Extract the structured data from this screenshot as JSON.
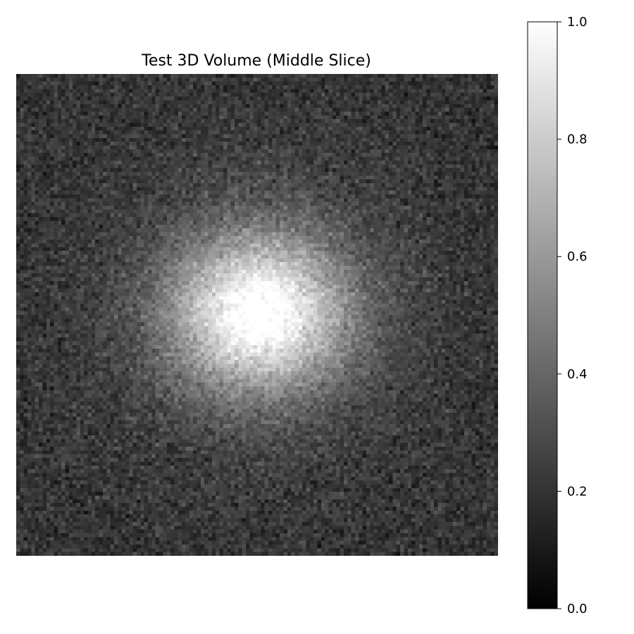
{
  "chart_data": {
    "type": "heatmap",
    "title": "Test 3D Volume (Middle Slice)",
    "colormap": "gray",
    "axes_visible": false,
    "grid": false,
    "image": {
      "rows": 128,
      "cols": 128,
      "background_level": 0.2,
      "noise_amplitude": 0.09,
      "blob_peak": 0.95,
      "blob_center_row": 63,
      "blob_center_col": 64,
      "blob_sigma_rows": 14,
      "blob_sigma_cols": 16,
      "halo_peak": 0.12,
      "halo_sigma": 30
    },
    "colorbar": {
      "vmin": 0.0,
      "vmax": 1.0,
      "ticks": [
        "0.0",
        "0.2",
        "0.4",
        "0.6",
        "0.8",
        "1.0"
      ],
      "tick_values": [
        0.0,
        0.2,
        0.4,
        0.6,
        0.8,
        1.0
      ]
    }
  }
}
